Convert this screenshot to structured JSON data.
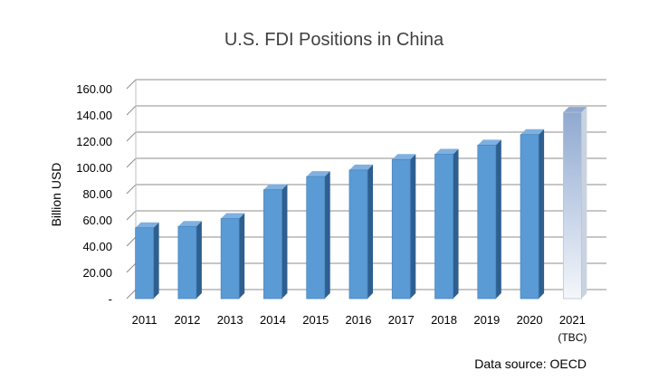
{
  "chart_data": {
    "type": "bar",
    "title": "U.S. FDI Positions in China",
    "xlabel": "",
    "ylabel": "Billion USD",
    "ylim": [
      0,
      160
    ],
    "y_ticks": [
      "-",
      "20.00",
      "40.00",
      "60.00",
      "80.00",
      "100.00",
      "120.00",
      "140.00",
      "160.00"
    ],
    "categories": [
      "2011",
      "2012",
      "2013",
      "2014",
      "2015",
      "2016",
      "2017",
      "2018",
      "2019",
      "2020",
      "2021"
    ],
    "category_sublabels": [
      "",
      "",
      "",
      "",
      "",
      "",
      "",
      "",
      "",
      "",
      "(TBC)"
    ],
    "values": [
      54,
      55,
      61,
      83,
      93,
      98,
      106,
      110,
      117,
      125,
      142
    ],
    "tbc_index": 10,
    "grid": true,
    "legend": "none",
    "style": "3d-column",
    "colors": {
      "bar_front": "#5b9bd5",
      "bar_side": "#2e5f8f",
      "bar_top": "#7fb0e0",
      "tbc_top": "#8fa9d0",
      "tbc_bottom": "#f4f7fb",
      "grid": "#8c8c8c"
    }
  },
  "source_note": "Data source: OECD"
}
